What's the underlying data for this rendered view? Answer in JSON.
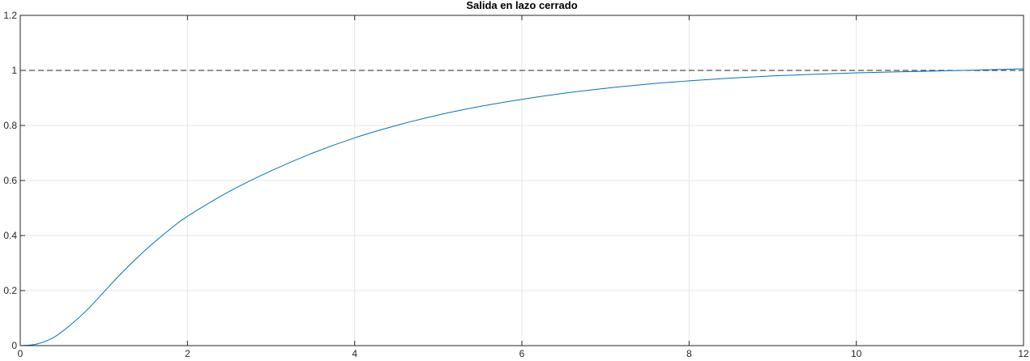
{
  "chart_data": {
    "type": "line",
    "title": "Salida en lazo cerrado",
    "xlabel": "",
    "ylabel": "",
    "xlim": [
      0,
      12
    ],
    "ylim": [
      0,
      1.2
    ],
    "x_ticks": [
      0,
      2,
      4,
      6,
      8,
      10,
      12
    ],
    "y_ticks": [
      0,
      0.2,
      0.4,
      0.6,
      0.8,
      1,
      1.2
    ],
    "x_tick_labels": [
      "0",
      "2",
      "4",
      "6",
      "8",
      "10",
      "12"
    ],
    "y_tick_labels": [
      "0",
      "0.2",
      "0.4",
      "0.6",
      "0.8",
      "1",
      "1.2"
    ],
    "grid": true,
    "legend": "none",
    "colors": {
      "series": "#0072bd",
      "reference": "#262626",
      "grid": "#e6e6e6",
      "axes": "#262626"
    },
    "reference_line": {
      "y": 1,
      "style": "dashed"
    },
    "series": [
      {
        "x": [
          0,
          0.2,
          0.4,
          0.6,
          0.8,
          1,
          1.2,
          1.4,
          1.6,
          1.8,
          2,
          2.5,
          3,
          3.5,
          4,
          4.5,
          5,
          5.5,
          6,
          6.5,
          7,
          7.5,
          8,
          8.5,
          9,
          9.5,
          10,
          10.5,
          11,
          11.5,
          12
        ],
        "y": [
          0,
          0.006,
          0.03,
          0.075,
          0.13,
          0.195,
          0.26,
          0.32,
          0.375,
          0.425,
          0.47,
          0.56,
          0.635,
          0.7,
          0.755,
          0.8,
          0.838,
          0.869,
          0.895,
          0.917,
          0.935,
          0.95,
          0.962,
          0.972,
          0.98,
          0.986,
          0.991,
          0.995,
          0.998,
          1.002,
          1.006
        ]
      }
    ]
  }
}
